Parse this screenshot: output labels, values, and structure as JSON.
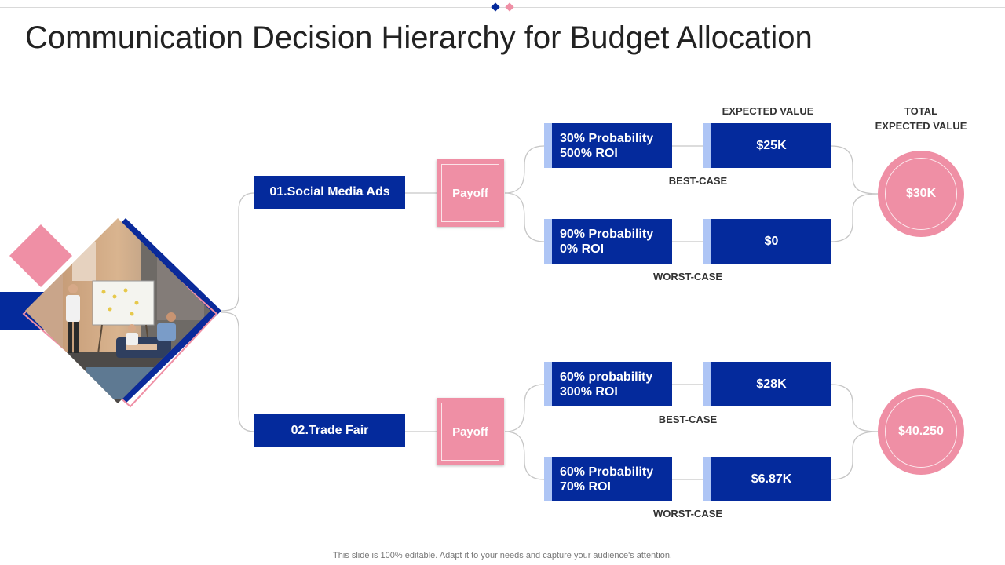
{
  "title": "Communication Decision Hierarchy for Budget Allocation",
  "footer": "This slide is 100% editable. Adapt it to your needs and capture your audience's attention.",
  "headers": {
    "expected_value": "EXPECTED VALUE",
    "total_line1": "TOTAL",
    "total_line2": "EXPECTED VALUE"
  },
  "colors": {
    "navy": "#042a9c",
    "pink": "#ef8fa5",
    "light_blue": "#aec5f5"
  },
  "image": {
    "description_icon": "team-meeting-photo"
  },
  "options": [
    {
      "label": "01.Social Media Ads",
      "payoff": "Payoff",
      "total": "$30K",
      "best": {
        "prob": "30% Probability",
        "roi": "500% ROI",
        "value": "$25K",
        "case": "BEST-CASE"
      },
      "worst": {
        "prob": "90% Probability",
        "roi": "0% ROI",
        "value": "$0",
        "case": "WORST-CASE"
      }
    },
    {
      "label": "02.Trade Fair",
      "payoff": "Payoff",
      "total": "$40.250",
      "best": {
        "prob": "60% probability",
        "roi": "300% ROI",
        "value": "$28K",
        "case": "BEST-CASE"
      },
      "worst": {
        "prob": "60% Probability",
        "roi": "70% ROI",
        "value": "$6.87K",
        "case": "WORST-CASE"
      }
    }
  ]
}
